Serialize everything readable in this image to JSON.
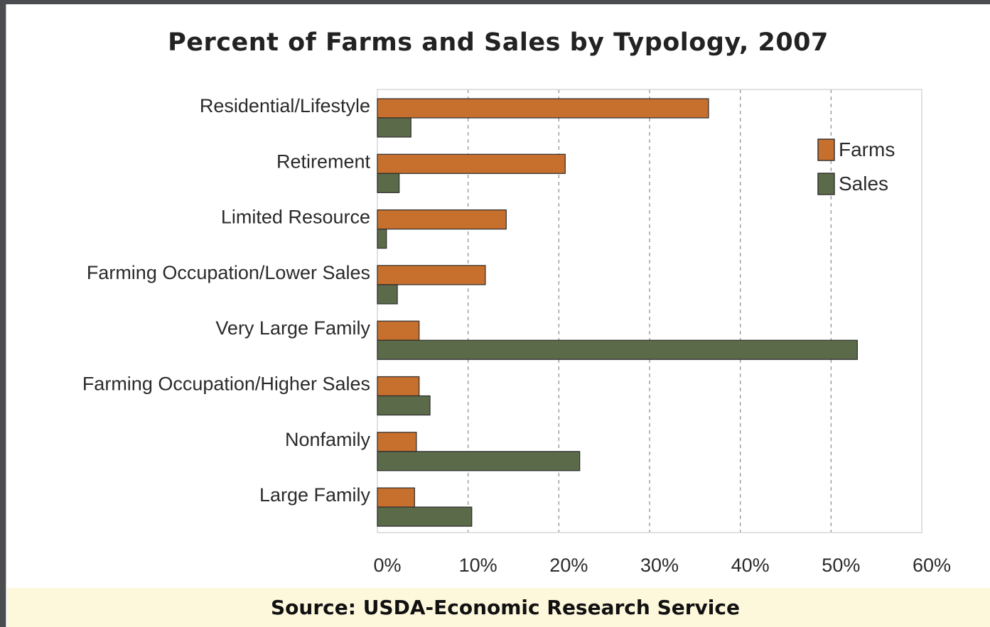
{
  "chart_data": {
    "type": "bar",
    "orientation": "horizontal",
    "title": "Percent of Farms and Sales by Typology, 2007",
    "categories": [
      "Residential/Lifestyle",
      "Retirement",
      "Limited Resource",
      "Farming Occupation/Lower Sales",
      "Very Large Family",
      "Farming Occupation/Higher Sales",
      "Nonfamily",
      "Large Family"
    ],
    "series": [
      {
        "name": "Farms",
        "color": "#c7702e",
        "values": [
          36.5,
          20.7,
          14.2,
          11.9,
          4.6,
          4.6,
          4.3,
          4.1
        ]
      },
      {
        "name": "Sales",
        "color": "#5b6b4a",
        "values": [
          3.7,
          2.4,
          1.0,
          2.2,
          52.9,
          5.8,
          22.3,
          10.4
        ]
      }
    ],
    "xlim": [
      0,
      60
    ],
    "xticks": [
      "0%",
      "10%",
      "20%",
      "30%",
      "40%",
      "50%",
      "60%"
    ],
    "grid": "vertical-dashed",
    "legend_position": "top-right"
  },
  "source": "Source: USDA-Economic Research Service"
}
